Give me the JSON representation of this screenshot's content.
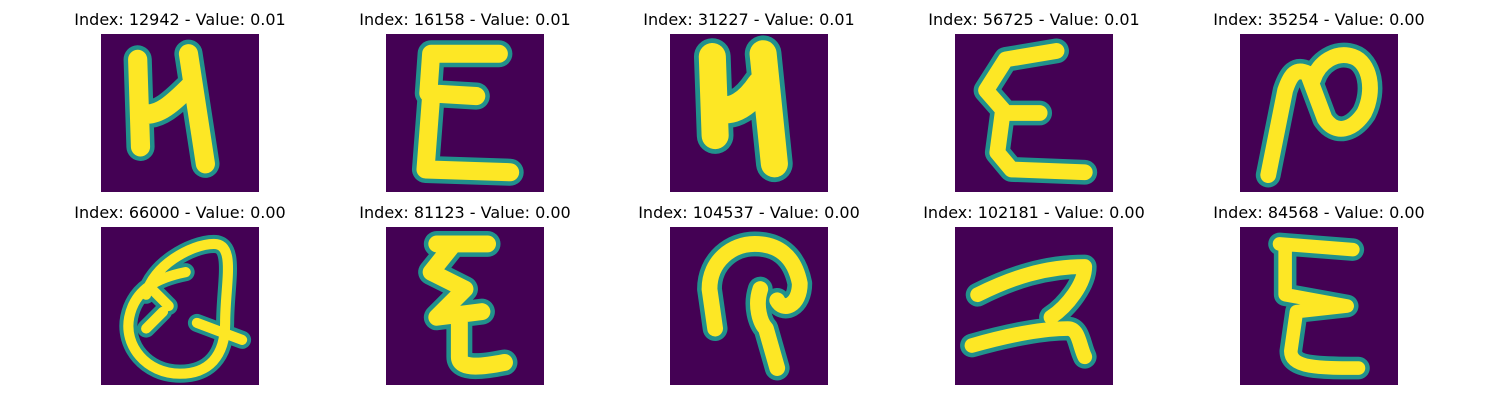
{
  "colors": {
    "background": "#440154",
    "stroke_mid": "#21918c",
    "stroke_core": "#fde725"
  },
  "panels": [
    {
      "title": "Index: 12942 - Value: 0.01",
      "glyph": "ч-like handwritten glyph"
    },
    {
      "title": "Index: 16158 - Value: 0.01",
      "glyph": "Ɛ-like handwritten glyph"
    },
    {
      "title": "Index: 31227 - Value: 0.01",
      "glyph": "ч-like handwritten glyph"
    },
    {
      "title": "Index: 56725 - Value: 0.01",
      "glyph": "Ɛ-like handwritten glyph"
    },
    {
      "title": "Index: 35254 - Value: 0.00",
      "glyph": "N-like handwritten glyph"
    },
    {
      "title": "Index: 66000 - Value: 0.00",
      "glyph": "Q-like handwritten glyph"
    },
    {
      "title": "Index: 81123 - Value: 0.00",
      "glyph": "Z-like handwritten glyph"
    },
    {
      "title": "Index: 104537 - Value: 0.00",
      "glyph": "P-like handwritten glyph"
    },
    {
      "title": "Index: 102181 - Value: 0.00",
      "glyph": "Z-like handwritten glyph"
    },
    {
      "title": "Index: 84568 - Value: 0.00",
      "glyph": "Ɛ-like handwritten glyph"
    }
  ]
}
